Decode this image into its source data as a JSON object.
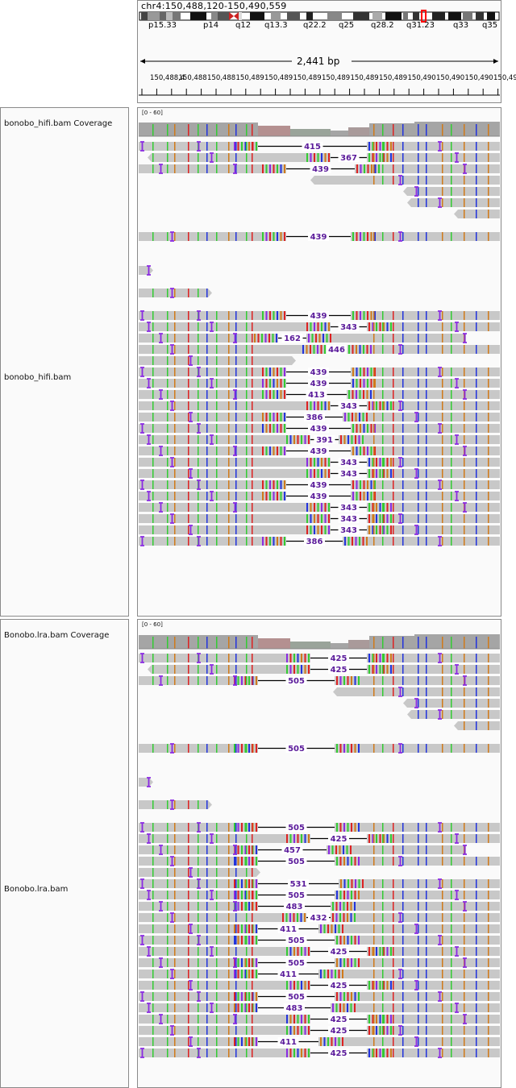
{
  "header": {
    "locus": "chr4:150,488,120-150,490,559",
    "cytobands": [
      "p15.33",
      "p14",
      "q12",
      "q13.3",
      "q22.2",
      "q25",
      "q28.2",
      "q31.23",
      "q33",
      "q35"
    ],
    "span": "2,441 bp",
    "ruler_ticks": [
      "150,488,4",
      "150,488",
      "150,488",
      "150,489",
      "150,489",
      "150,489",
      "150,489",
      "150,489",
      "150,489",
      "150,490",
      "150,490",
      "150,490",
      "150,490"
    ]
  },
  "track1": {
    "coverage_label": "bonobo_hifi.bam Coverage",
    "reads_label": "bonobo_hifi.bam",
    "data_range": "[0 - 60]",
    "reads": [
      {
        "s": 172,
        "e": 620,
        "gap": [
          320,
          455
        ],
        "n": "415"
      },
      {
        "s": 188,
        "e": 620,
        "gap": [
          410,
          455
        ],
        "n": "367"
      },
      {
        "s": 172,
        "e": 620,
        "gap": [
          355,
          440
        ],
        "n": "439"
      },
      {
        "s": 390,
        "e": 620,
        "gap": null,
        "n": ""
      },
      {
        "s": 505,
        "e": 620,
        "gap": null,
        "n": ""
      },
      {
        "s": 510,
        "e": 620,
        "gap": null,
        "n": ""
      },
      {
        "s": 568,
        "e": 620,
        "gap": null,
        "n": ""
      },
      {
        "s": 0,
        "e": 0,
        "gap": null,
        "n": ""
      },
      {
        "s": 172,
        "e": 620,
        "gap": [
          355,
          435
        ],
        "n": "439"
      },
      {
        "s": 0,
        "e": 0,
        "gap": null,
        "n": ""
      },
      {
        "s": 0,
        "e": 0,
        "gap": null,
        "n": ""
      },
      {
        "s": 172,
        "e": 185,
        "gap": null,
        "n": ""
      },
      {
        "s": 0,
        "e": 0,
        "gap": null,
        "n": ""
      },
      {
        "s": 172,
        "e": 258,
        "gap": null,
        "n": ""
      },
      {
        "s": 0,
        "e": 0,
        "gap": null,
        "n": ""
      },
      {
        "s": 172,
        "e": 620,
        "gap": [
          355,
          435
        ],
        "n": "439"
      },
      {
        "s": 172,
        "e": 620,
        "gap": [
          410,
          455
        ],
        "n": "343"
      },
      {
        "s": 172,
        "e": 578,
        "gap": [
          345,
          380
        ],
        "n": "162"
      },
      {
        "s": 172,
        "e": 620,
        "gap": [
          405,
          430
        ],
        "n": "446"
      },
      {
        "s": 172,
        "e": 362,
        "gap": null,
        "n": ""
      },
      {
        "s": 172,
        "e": 620,
        "gap": [
          355,
          435
        ],
        "n": "439"
      },
      {
        "s": 172,
        "e": 620,
        "gap": [
          355,
          435
        ],
        "n": "439"
      },
      {
        "s": 172,
        "e": 620,
        "gap": [
          355,
          430
        ],
        "n": "413"
      },
      {
        "s": 172,
        "e": 620,
        "gap": [
          410,
          455
        ],
        "n": "343"
      },
      {
        "s": 172,
        "e": 620,
        "gap": [
          355,
          425
        ],
        "n": "386"
      },
      {
        "s": 172,
        "e": 620,
        "gap": [
          355,
          435
        ],
        "n": "439"
      },
      {
        "s": 172,
        "e": 620,
        "gap": [
          385,
          420
        ],
        "n": "391"
      },
      {
        "s": 172,
        "e": 620,
        "gap": [
          355,
          435
        ],
        "n": "439"
      },
      {
        "s": 172,
        "e": 620,
        "gap": [
          410,
          455
        ],
        "n": "343"
      },
      {
        "s": 172,
        "e": 620,
        "gap": [
          410,
          455
        ],
        "n": "343"
      },
      {
        "s": 172,
        "e": 620,
        "gap": [
          355,
          435
        ],
        "n": "439"
      },
      {
        "s": 172,
        "e": 620,
        "gap": [
          355,
          435
        ],
        "n": "439"
      },
      {
        "s": 172,
        "e": 620,
        "gap": [
          410,
          455
        ],
        "n": "343"
      },
      {
        "s": 172,
        "e": 620,
        "gap": [
          410,
          455
        ],
        "n": "343"
      },
      {
        "s": 172,
        "e": 620,
        "gap": [
          410,
          455
        ],
        "n": "343"
      },
      {
        "s": 172,
        "e": 620,
        "gap": [
          355,
          425
        ],
        "n": "386"
      }
    ]
  },
  "track2": {
    "coverage_label": "Bonobo.lra.bam Coverage",
    "reads_label": "Bonobo.lra.bam",
    "data_range": "[0 - 60]",
    "reads": [
      {
        "s": 172,
        "e": 620,
        "gap": [
          385,
          455
        ],
        "n": "425"
      },
      {
        "s": 188,
        "e": 620,
        "gap": [
          385,
          455
        ],
        "n": "425"
      },
      {
        "s": 172,
        "e": 620,
        "gap": [
          320,
          415
        ],
        "n": "505"
      },
      {
        "s": 418,
        "e": 620,
        "gap": null,
        "n": ""
      },
      {
        "s": 505,
        "e": 620,
        "gap": null,
        "n": ""
      },
      {
        "s": 510,
        "e": 620,
        "gap": null,
        "n": ""
      },
      {
        "s": 568,
        "e": 620,
        "gap": null,
        "n": ""
      },
      {
        "s": 0,
        "e": 0,
        "gap": null,
        "n": ""
      },
      {
        "s": 172,
        "e": 620,
        "gap": [
          320,
          415
        ],
        "n": "505"
      },
      {
        "s": 0,
        "e": 0,
        "gap": null,
        "n": ""
      },
      {
        "s": 0,
        "e": 0,
        "gap": null,
        "n": ""
      },
      {
        "s": 172,
        "e": 185,
        "gap": null,
        "n": ""
      },
      {
        "s": 0,
        "e": 0,
        "gap": null,
        "n": ""
      },
      {
        "s": 172,
        "e": 258,
        "gap": null,
        "n": ""
      },
      {
        "s": 0,
        "e": 0,
        "gap": null,
        "n": ""
      },
      {
        "s": 172,
        "e": 620,
        "gap": [
          320,
          415
        ],
        "n": "505"
      },
      {
        "s": 172,
        "e": 620,
        "gap": [
          385,
          455
        ],
        "n": "425"
      },
      {
        "s": 172,
        "e": 578,
        "gap": [
          320,
          405
        ],
        "n": "457"
      },
      {
        "s": 172,
        "e": 620,
        "gap": [
          320,
          415
        ],
        "n": "505"
      },
      {
        "s": 172,
        "e": 318,
        "gap": null,
        "n": ""
      },
      {
        "s": 172,
        "e": 620,
        "gap": [
          320,
          420
        ],
        "n": "531"
      },
      {
        "s": 172,
        "e": 620,
        "gap": [
          320,
          415
        ],
        "n": "505"
      },
      {
        "s": 172,
        "e": 620,
        "gap": [
          320,
          410
        ],
        "n": "483"
      },
      {
        "s": 172,
        "e": 620,
        "gap": [
          380,
          410
        ],
        "n": "432"
      },
      {
        "s": 172,
        "e": 620,
        "gap": [
          320,
          395
        ],
        "n": "411"
      },
      {
        "s": 172,
        "e": 620,
        "gap": [
          320,
          415
        ],
        "n": "505"
      },
      {
        "s": 172,
        "e": 620,
        "gap": [
          385,
          455
        ],
        "n": "425"
      },
      {
        "s": 172,
        "e": 620,
        "gap": [
          320,
          415
        ],
        "n": "505"
      },
      {
        "s": 172,
        "e": 620,
        "gap": [
          320,
          395
        ],
        "n": "411"
      },
      {
        "s": 172,
        "e": 620,
        "gap": [
          385,
          455
        ],
        "n": "425"
      },
      {
        "s": 172,
        "e": 620,
        "gap": [
          320,
          415
        ],
        "n": "505"
      },
      {
        "s": 172,
        "e": 620,
        "gap": [
          320,
          410
        ],
        "n": "483"
      },
      {
        "s": 172,
        "e": 620,
        "gap": [
          385,
          455
        ],
        "n": "425"
      },
      {
        "s": 172,
        "e": 620,
        "gap": [
          385,
          455
        ],
        "n": "425"
      },
      {
        "s": 172,
        "e": 620,
        "gap": [
          320,
          395
        ],
        "n": "411"
      },
      {
        "s": 172,
        "e": 620,
        "gap": [
          385,
          455
        ],
        "n": "425"
      }
    ]
  },
  "colors": {
    "read": "#c8c8c8",
    "coverage": "#a5a5a5",
    "insertion": "#8a2be2",
    "mismatch_A": "#33cc33",
    "mismatch_C": "#2233dd",
    "mismatch_G": "#d07a1a",
    "mismatch_T": "#dd2222",
    "gap_label": "#5a1a9a",
    "centromere": "#cc2222",
    "current_view": "#ff0000"
  }
}
